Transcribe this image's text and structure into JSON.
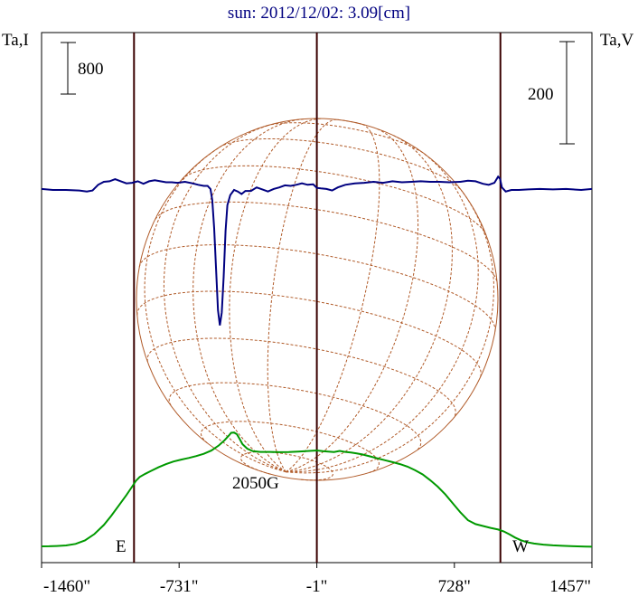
{
  "chart_data": {
    "type": "line",
    "title": "sun: 2012/12/02: 3.09[cm]",
    "left_axis_label": "Ta,I",
    "right_axis_label": "Ta,V",
    "x_ticks": [
      {
        "value": -1460,
        "label": "-1460\""
      },
      {
        "value": -731,
        "label": "-731\""
      },
      {
        "value": -1,
        "label": "-1\""
      },
      {
        "value": 728,
        "label": "728\""
      },
      {
        "value": 1457,
        "label": "1457\""
      }
    ],
    "xlim": [
      -1460,
      1457
    ],
    "scale_bar_left": "800",
    "scale_bar_right": "200",
    "limb_labels": {
      "east": "E",
      "west": "W"
    },
    "limb_lines_x": [
      -970,
      972
    ],
    "center_line_x": -1,
    "annotation": "2050G",
    "colors": {
      "stokes_i": "#009900",
      "stokes_v": "#000080",
      "disk": "#b05a28",
      "limb_lines": "#3a0000",
      "title": "#000080"
    },
    "series": [
      {
        "name": "I",
        "color": "#009900",
        "points": [
          [
            -1460,
            14
          ],
          [
            -1420,
            16
          ],
          [
            -1380,
            19
          ],
          [
            -1330,
            28
          ],
          [
            -1280,
            52
          ],
          [
            -1230,
            105
          ],
          [
            -1180,
            205
          ],
          [
            -1130,
            345
          ],
          [
            -1090,
            490
          ],
          [
            -1050,
            650
          ],
          [
            -1010,
            810
          ],
          [
            -980,
            940
          ],
          [
            -960,
            1030
          ],
          [
            -940,
            1090
          ],
          [
            -910,
            1140
          ],
          [
            -880,
            1185
          ],
          [
            -840,
            1240
          ],
          [
            -800,
            1290
          ],
          [
            -760,
            1330
          ],
          [
            -720,
            1360
          ],
          [
            -680,
            1385
          ],
          [
            -640,
            1415
          ],
          [
            -600,
            1450
          ],
          [
            -560,
            1500
          ],
          [
            -520,
            1580
          ],
          [
            -490,
            1660
          ],
          [
            -470,
            1725
          ],
          [
            -455,
            1775
          ],
          [
            -440,
            1780
          ],
          [
            -425,
            1755
          ],
          [
            -410,
            1680
          ],
          [
            -395,
            1600
          ],
          [
            -370,
            1530
          ],
          [
            -340,
            1490
          ],
          [
            -300,
            1480
          ],
          [
            -250,
            1480
          ],
          [
            -200,
            1475
          ],
          [
            -150,
            1478
          ],
          [
            -100,
            1485
          ],
          [
            -60,
            1490
          ],
          [
            -20,
            1498
          ],
          [
            -1,
            1502
          ],
          [
            30,
            1490
          ],
          [
            60,
            1485
          ],
          [
            90,
            1478
          ],
          [
            120,
            1495
          ],
          [
            150,
            1480
          ],
          [
            180,
            1470
          ],
          [
            210,
            1455
          ],
          [
            240,
            1440
          ],
          [
            280,
            1410
          ],
          [
            320,
            1380
          ],
          [
            360,
            1350
          ],
          [
            400,
            1320
          ],
          [
            440,
            1290
          ],
          [
            480,
            1250
          ],
          [
            520,
            1195
          ],
          [
            560,
            1130
          ],
          [
            600,
            1040
          ],
          [
            640,
            940
          ],
          [
            680,
            820
          ],
          [
            720,
            680
          ],
          [
            760,
            540
          ],
          [
            800,
            420
          ],
          [
            840,
            360
          ],
          [
            880,
            330
          ],
          [
            920,
            300
          ],
          [
            960,
            275
          ],
          [
            990,
            245
          ],
          [
            1020,
            200
          ],
          [
            1050,
            150
          ],
          [
            1080,
            110
          ],
          [
            1110,
            80
          ],
          [
            1150,
            58
          ],
          [
            1200,
            40
          ],
          [
            1250,
            30
          ],
          [
            1300,
            22
          ],
          [
            1360,
            16
          ],
          [
            1420,
            11
          ],
          [
            1457,
            8
          ]
        ]
      },
      {
        "name": "V",
        "color": "#000080",
        "points": [
          [
            -1460,
            2
          ],
          [
            -1400,
            0
          ],
          [
            -1330,
            0
          ],
          [
            -1260,
            -1
          ],
          [
            -1220,
            -3
          ],
          [
            -1190,
            -1
          ],
          [
            -1160,
            10
          ],
          [
            -1130,
            16
          ],
          [
            -1100,
            17
          ],
          [
            -1070,
            21
          ],
          [
            -1040,
            17
          ],
          [
            -1010,
            13
          ],
          [
            -980,
            14
          ],
          [
            -950,
            17
          ],
          [
            -920,
            12
          ],
          [
            -890,
            17
          ],
          [
            -860,
            19
          ],
          [
            -830,
            17
          ],
          [
            -800,
            15
          ],
          [
            -770,
            15
          ],
          [
            -740,
            14
          ],
          [
            -700,
            16
          ],
          [
            -660,
            13
          ],
          [
            -630,
            10
          ],
          [
            -600,
            8
          ],
          [
            -580,
            8
          ],
          [
            -565,
            2
          ],
          [
            -555,
            -20
          ],
          [
            -545,
            -75
          ],
          [
            -535,
            -155
          ],
          [
            -525,
            -235
          ],
          [
            -515,
            -265
          ],
          [
            -505,
            -240
          ],
          [
            -495,
            -170
          ],
          [
            -485,
            -80
          ],
          [
            -475,
            -30
          ],
          [
            -460,
            -10
          ],
          [
            -440,
            0
          ],
          [
            -420,
            -3
          ],
          [
            -400,
            -8
          ],
          [
            -380,
            -2
          ],
          [
            -350,
            -2
          ],
          [
            -320,
            5
          ],
          [
            -290,
            1
          ],
          [
            -260,
            -3
          ],
          [
            -230,
            2
          ],
          [
            -200,
            5
          ],
          [
            -170,
            9
          ],
          [
            -140,
            8
          ],
          [
            -110,
            10
          ],
          [
            -80,
            13
          ],
          [
            -50,
            10
          ],
          [
            -20,
            11
          ],
          [
            -1,
            4
          ],
          [
            20,
            3
          ],
          [
            50,
            2
          ],
          [
            80,
            -1
          ],
          [
            110,
            5
          ],
          [
            150,
            10
          ],
          [
            200,
            13
          ],
          [
            250,
            14
          ],
          [
            300,
            16
          ],
          [
            350,
            14
          ],
          [
            400,
            17
          ],
          [
            450,
            15
          ],
          [
            500,
            16
          ],
          [
            550,
            17
          ],
          [
            600,
            16
          ],
          [
            650,
            16
          ],
          [
            700,
            15
          ],
          [
            760,
            16
          ],
          [
            800,
            18
          ],
          [
            840,
            17
          ],
          [
            880,
            12
          ],
          [
            910,
            10
          ],
          [
            940,
            14
          ],
          [
            960,
            26
          ],
          [
            970,
            22
          ],
          [
            980,
            5
          ],
          [
            1000,
            -3
          ],
          [
            1030,
            0
          ],
          [
            1070,
            0
          ],
          [
            1120,
            1
          ],
          [
            1180,
            2
          ],
          [
            1250,
            1
          ],
          [
            1320,
            2
          ],
          [
            1400,
            0
          ],
          [
            1457,
            2
          ]
        ]
      }
    ]
  }
}
